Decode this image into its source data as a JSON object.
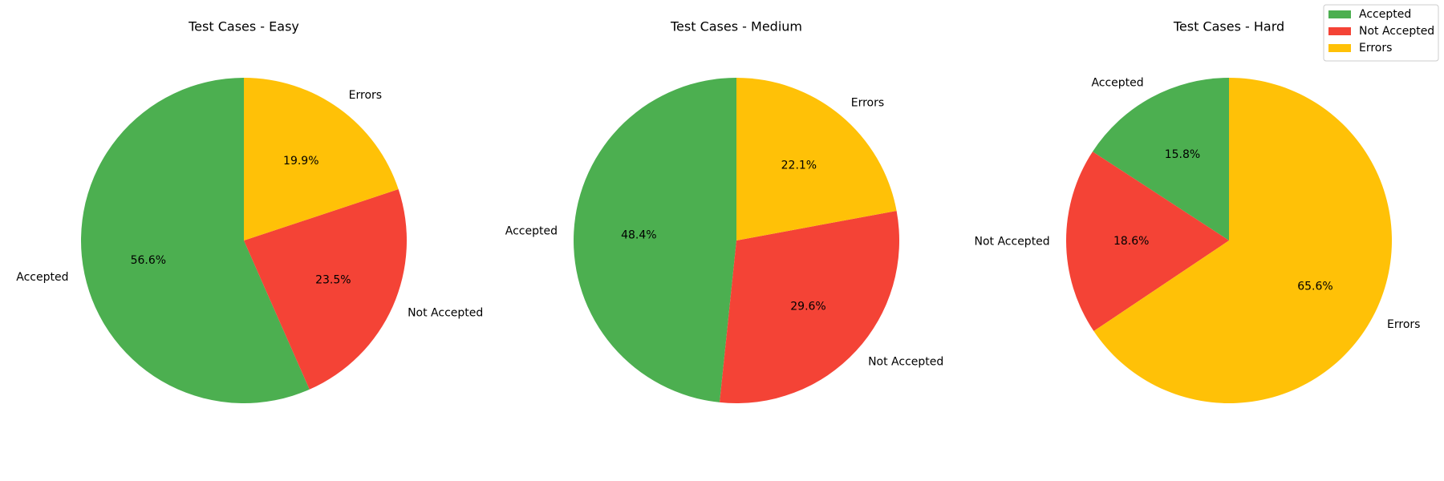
{
  "chart_data": [
    {
      "type": "pie",
      "title": "Test Cases - Easy",
      "categories": [
        "Accepted",
        "Not Accepted",
        "Errors"
      ],
      "values": [
        56.6,
        23.5,
        19.9
      ],
      "value_labels": [
        "56.6%",
        "23.5%",
        "19.9%"
      ],
      "colors": [
        "#4caf50",
        "#f44336",
        "#ffc107"
      ],
      "start_angle_deg": 90,
      "direction": "counterclockwise"
    },
    {
      "type": "pie",
      "title": "Test Cases - Medium",
      "categories": [
        "Accepted",
        "Not Accepted",
        "Errors"
      ],
      "values": [
        48.4,
        29.6,
        22.1
      ],
      "value_labels": [
        "48.4%",
        "29.6%",
        "22.1%"
      ],
      "colors": [
        "#4caf50",
        "#f44336",
        "#ffc107"
      ],
      "start_angle_deg": 90,
      "direction": "counterclockwise"
    },
    {
      "type": "pie",
      "title": "Test Cases - Hard",
      "categories": [
        "Accepted",
        "Not Accepted",
        "Errors"
      ],
      "values": [
        15.8,
        18.6,
        65.6
      ],
      "value_labels": [
        "15.8%",
        "18.6%",
        "65.6%"
      ],
      "colors": [
        "#4caf50",
        "#f44336",
        "#ffc107"
      ],
      "start_angle_deg": 90,
      "direction": "counterclockwise"
    }
  ],
  "legend": {
    "placement": "top-right",
    "entries": [
      {
        "label": "Accepted",
        "color": "#4caf50"
      },
      {
        "label": "Not Accepted",
        "color": "#f44336"
      },
      {
        "label": "Errors",
        "color": "#ffc107"
      }
    ]
  }
}
